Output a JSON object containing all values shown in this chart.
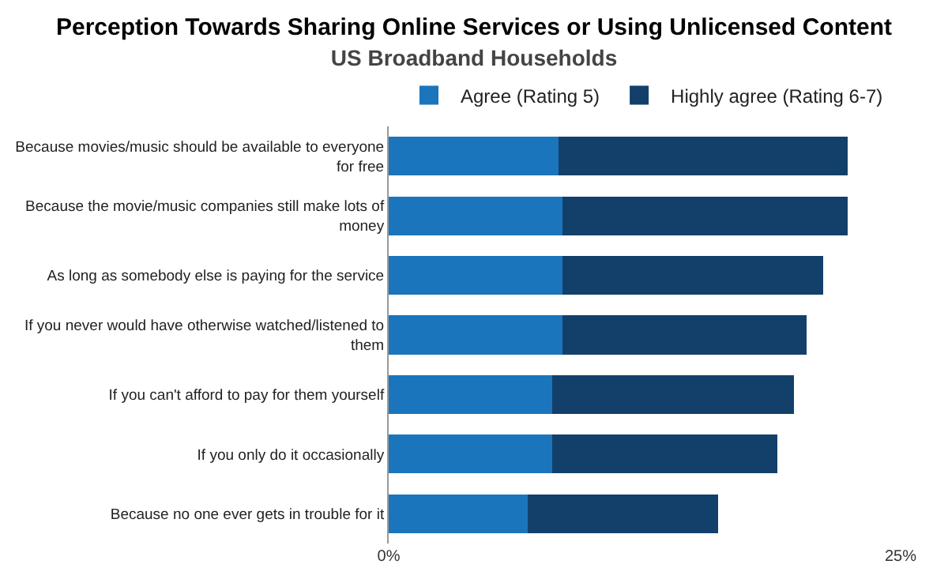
{
  "chart_data": {
    "type": "bar",
    "orientation": "horizontal",
    "stacked": true,
    "title": "Perception Towards Sharing Online Services or Using Unlicensed Content",
    "subtitle": "US Broadband Households",
    "categories": [
      "Because movies/music should be available to everyone for free",
      "Because the movie/music companies still make lots of money",
      "As long as somebody else is paying for the service",
      "If you never would have otherwise watched/listened to them",
      "If you can't afford to pay for them yourself",
      "If you only do it occasionally",
      "Because no one ever gets in trouble for it"
    ],
    "series": [
      {
        "name": "Agree (Rating 5)",
        "color": "#1b75bc",
        "values": [
          8.3,
          8.5,
          8.5,
          8.5,
          8.0,
          8.0,
          6.8
        ]
      },
      {
        "name": "Highly agree (Rating 6-7)",
        "color": "#12406b",
        "values": [
          14.1,
          13.9,
          12.7,
          11.9,
          11.8,
          11.0,
          9.3
        ]
      }
    ],
    "xlim": [
      0,
      25
    ],
    "xticks": [
      {
        "value": 0,
        "label": "0%"
      },
      {
        "value": 25,
        "label": "25%"
      }
    ],
    "legend": "top"
  }
}
